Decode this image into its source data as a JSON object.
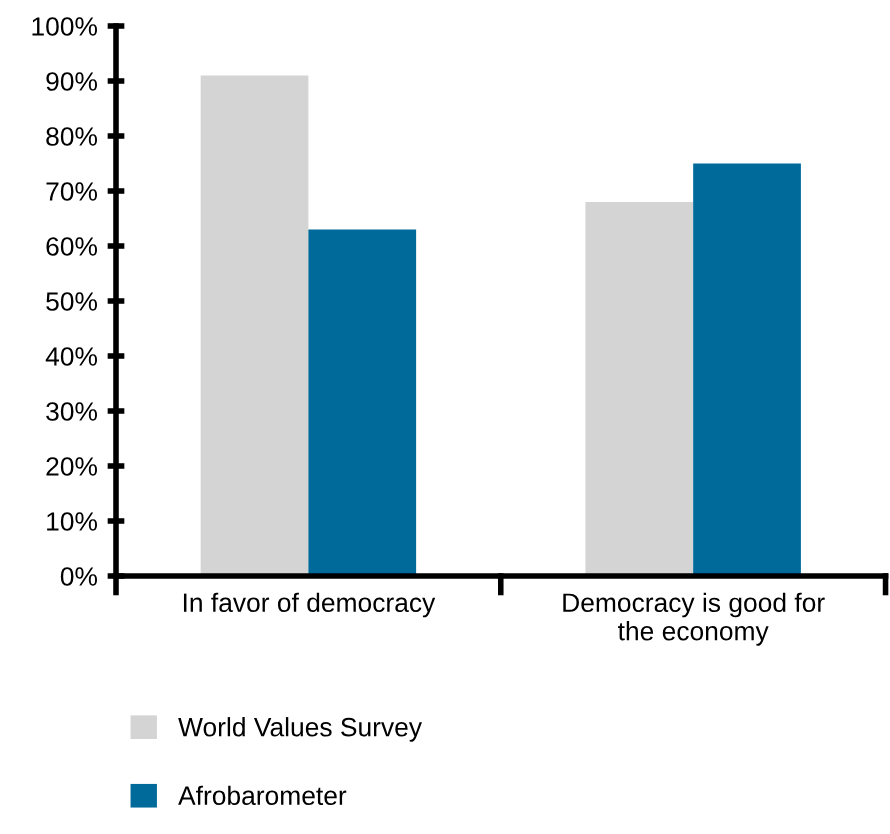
{
  "chart_data": {
    "type": "bar",
    "categories": [
      "In favor of democracy",
      "Democracy is good for\nthe economy"
    ],
    "series": [
      {
        "name": "World Values Survey",
        "color": "#d4d4d4",
        "values": [
          91,
          68
        ]
      },
      {
        "name": "Afrobarometer",
        "color": "#006a9a",
        "values": [
          63,
          75
        ]
      }
    ],
    "ylim": [
      0,
      100
    ],
    "yticks": [
      {
        "value": 0,
        "label": "0%"
      },
      {
        "value": 10,
        "label": "10%"
      },
      {
        "value": 20,
        "label": "20%"
      },
      {
        "value": 30,
        "label": "30%"
      },
      {
        "value": 40,
        "label": "40%"
      },
      {
        "value": 50,
        "label": "50%"
      },
      {
        "value": 60,
        "label": "60%"
      },
      {
        "value": 70,
        "label": "70%"
      },
      {
        "value": 80,
        "label": "80%"
      },
      {
        "value": 90,
        "label": "90%"
      },
      {
        "value": 100,
        "label": "100%"
      }
    ],
    "grid": false,
    "legend": "bottom"
  }
}
